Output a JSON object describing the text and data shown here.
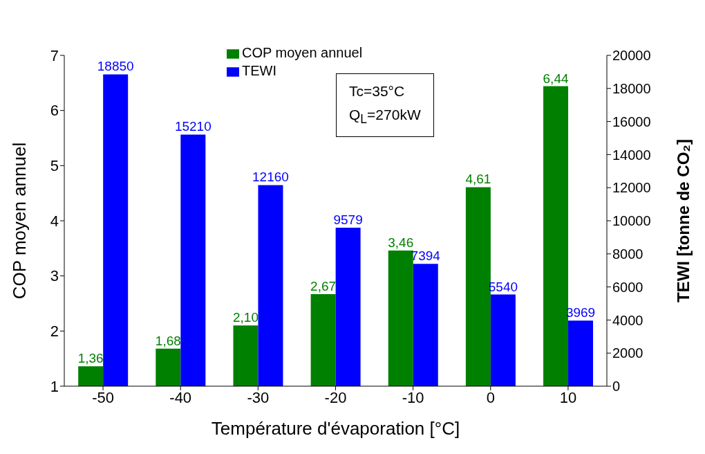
{
  "chart_data": {
    "type": "bar",
    "categories": [
      "-50",
      "-40",
      "-30",
      "-20",
      "-10",
      "0",
      "10"
    ],
    "series": [
      {
        "name": "COP moyen annuel",
        "color": "#008000",
        "values": [
          1.36,
          1.68,
          2.1,
          2.67,
          3.46,
          4.61,
          6.44
        ],
        "value_labels": [
          "1,36",
          "1,68",
          "2,10",
          "2,67",
          "3,46",
          "4,61",
          "6,44"
        ]
      },
      {
        "name": "TEWI",
        "color": "#0000ff",
        "axis": "y2",
        "values": [
          18850,
          15210,
          12160,
          9579,
          7394,
          5540,
          3969
        ],
        "value_labels": [
          "18850",
          "15210",
          "12160",
          "9579",
          "7394",
          "5540",
          "3969"
        ]
      }
    ],
    "xlabel": "Température d'évaporation [°C]",
    "ylabel": "COP moyen annuel",
    "y2label": "TEWI [tonne de CO₂]",
    "ylim": [
      1,
      7
    ],
    "yticks": [
      1,
      2,
      3,
      4,
      5,
      6,
      7
    ],
    "y2lim": [
      0,
      20000
    ],
    "y2ticks": [
      0,
      2000,
      4000,
      6000,
      8000,
      10000,
      12000,
      14000,
      16000,
      18000,
      20000
    ],
    "annotations": [
      "Tc=35°C",
      "Q$_{L}$=270kW"
    ],
    "legend": "top",
    "grid": false
  }
}
